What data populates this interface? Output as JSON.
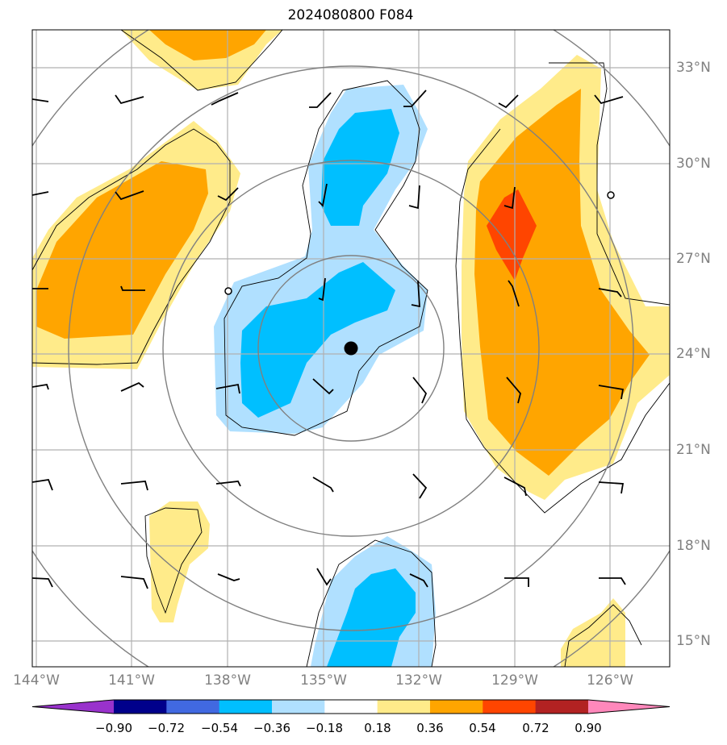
{
  "title": "2024080800 F084",
  "lat_labels": [
    "33°N",
    "30°N",
    "27°N",
    "24°N",
    "21°N",
    "18°N",
    "15°N"
  ],
  "lon_labels": [
    "144°W",
    "141°W",
    "138°W",
    "135°W",
    "132°W",
    "129°W",
    "126°W"
  ],
  "colorbar": {
    "ticks": [
      "−0.90",
      "−0.72",
      "−0.54",
      "−0.36",
      "−0.18",
      "0.18",
      "0.36",
      "0.54",
      "0.72",
      "0.90"
    ],
    "colors": [
      "#9932cc",
      "#00008b",
      "#4169e1",
      "#00bfff",
      "#b0e0ff",
      "#ffffff",
      "#ffeb8a",
      "#ffa500",
      "#ff4500",
      "#b22222",
      "#ff88bb"
    ]
  },
  "map": {
    "extent_lon": [
      -144,
      -124.5
    ],
    "extent_lat": [
      14.3,
      34.3
    ],
    "storm_center": {
      "lon": -134.0,
      "lat": 24.2
    },
    "fill_colors": {
      "light_yellow": "#ffeb8a",
      "orange": "#ffa500",
      "red_orange": "#ff4500",
      "light_blue": "#b0e0ff",
      "deep_sky_blue": "#00bfff"
    },
    "range_ring_color": "#808080",
    "grid_color": "#b0b0b0"
  }
}
